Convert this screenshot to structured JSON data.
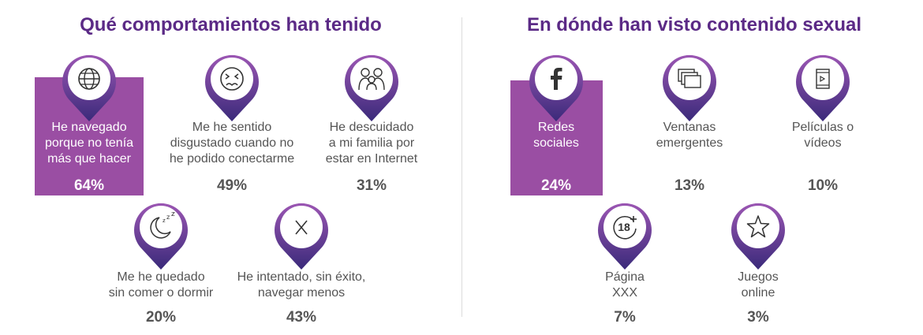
{
  "colors": {
    "title": "#5b2a86",
    "highlight": "#9a4ea3",
    "pin_top": "#9b56b3",
    "pin_bottom": "#3a2a7a",
    "text": "#555555"
  },
  "left": {
    "title": "Qué comportamientos han tenido",
    "items": [
      {
        "icon": "globe-icon",
        "label": "He navegado\nporque no tenía\nmás que hacer",
        "percent": "64%",
        "value": 64
      },
      {
        "icon": "disgusted-face-icon",
        "label": "Me he sentido\ndisgustado cuando no\nhe podido conectarme",
        "percent": "49%",
        "value": 49
      },
      {
        "icon": "family-icon",
        "label": "He descuidado\na mi familia por\nestar en Internet",
        "percent": "31%",
        "value": 31
      },
      {
        "icon": "moon-sleep-icon",
        "label": "Me he quedado\nsin comer o dormir",
        "percent": "20%",
        "value": 20
      },
      {
        "icon": "x-icon",
        "label": "He intentado, sin éxito,\nnavegar menos",
        "percent": "43%",
        "value": 43
      }
    ]
  },
  "right": {
    "title": "En dónde han visto contenido sexual",
    "items": [
      {
        "icon": "facebook-icon",
        "label": "Redes\nsociales",
        "percent": "24%",
        "value": 24
      },
      {
        "icon": "popup-windows-icon",
        "label": "Ventanas\nemergentes",
        "percent": "13%",
        "value": 13
      },
      {
        "icon": "film-icon",
        "label": "Películas o\nvídeos",
        "percent": "10%",
        "value": 10
      },
      {
        "icon": "age-18-plus-icon",
        "label": "Página\nXXX",
        "percent": "7%",
        "value": 7,
        "badge": "18"
      },
      {
        "icon": "star-icon",
        "label": "Juegos\nonline",
        "percent": "3%",
        "value": 3
      }
    ]
  }
}
